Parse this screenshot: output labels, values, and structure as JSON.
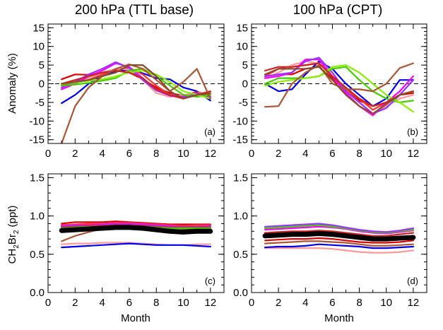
{
  "figure": {
    "col_titles": [
      "200 hPa (TTL base)",
      "100 hPa (CPT)"
    ],
    "ylabel_top": "Anomaly (%)",
    "ylabel_bottom": {
      "main": "CH",
      "sub1": "2",
      "mid": "Br",
      "sub2": "2",
      "tail": " (ppt)"
    },
    "xlabel": "Month"
  },
  "chart_data": [
    {
      "id": "a",
      "panel_label": "(a)",
      "type": "line",
      "xlim": [
        0,
        13
      ],
      "ylim": [
        -16,
        16
      ],
      "xticks": [
        0,
        2,
        4,
        6,
        8,
        10,
        12
      ],
      "yticks": [
        -15,
        -10,
        -5,
        0,
        5,
        10,
        15
      ],
      "zero_line": true,
      "grid": false,
      "x": [
        1,
        2,
        3,
        4,
        5,
        6,
        7,
        8,
        9,
        10,
        11,
        12
      ],
      "series": [
        {
          "color": "#0000ee",
          "width": 2.2,
          "values": [
            -5.2,
            -3,
            0,
            2,
            3.3,
            3.8,
            2.8,
            1.5,
            1.2,
            -1,
            -2,
            -4.5
          ]
        },
        {
          "color": "#dd0000",
          "width": 2.2,
          "values": [
            1.2,
            2.5,
            2.4,
            3,
            3.5,
            3,
            1.2,
            -1,
            -2.5,
            -3.2,
            -2.2,
            -3
          ]
        },
        {
          "color": "#ff3333",
          "width": 2.2,
          "values": [
            -0.5,
            0.2,
            1,
            2.5,
            3.8,
            4.3,
            2.5,
            -0.5,
            -3,
            -4,
            -3,
            -3
          ]
        },
        {
          "color": "#ff9999",
          "width": 2.2,
          "values": [
            -1.2,
            0,
            1.5,
            3,
            4,
            3.8,
            1,
            -2.5,
            -3.5,
            -3,
            -2.5,
            -2.5
          ]
        },
        {
          "color": "#ff00ff",
          "width": 2.2,
          "values": [
            -1.5,
            0,
            2,
            3.5,
            5.5,
            4.5,
            1.5,
            -1.5,
            -3,
            -3.5,
            -2.8,
            -3.5
          ]
        },
        {
          "color": "#9933ff",
          "width": 2.2,
          "values": [
            -1,
            0.5,
            2.5,
            4,
            5.8,
            4.2,
            1,
            -1.8,
            -3.2,
            -3.8,
            -2.5,
            -3.5
          ]
        },
        {
          "color": "#44cc00",
          "width": 2.2,
          "values": [
            -0.5,
            -0.2,
            0.2,
            0.8,
            1.5,
            3.5,
            4,
            2,
            -0.5,
            -3,
            -3.5,
            -3
          ]
        },
        {
          "color": "#88ee00",
          "width": 2.2,
          "values": [
            0,
            0.3,
            0.8,
            1.2,
            2,
            3,
            3.5,
            2.5,
            0.5,
            -2,
            -3,
            -4
          ]
        },
        {
          "color": "#cc2222",
          "width": 2.2,
          "values": [
            0,
            1,
            2,
            3,
            3.5,
            3,
            1.5,
            -1.5,
            -3,
            -4,
            -3,
            -2
          ]
        },
        {
          "color": "#aa5533",
          "width": 2.2,
          "values": [
            -16,
            -6,
            -1,
            2,
            4,
            5.2,
            4,
            1,
            -2,
            0.5,
            4,
            -4
          ]
        },
        {
          "color": "#8a4a2a",
          "width": 2.2,
          "values": [
            0,
            0.5,
            1,
            2,
            3,
            5,
            5,
            2,
            -2,
            -4,
            -3,
            -2.5
          ]
        }
      ]
    },
    {
      "id": "b",
      "panel_label": "(b)",
      "type": "line",
      "xlim": [
        0,
        13
      ],
      "ylim": [
        -16,
        16
      ],
      "xticks": [
        0,
        2,
        4,
        6,
        8,
        10,
        12
      ],
      "yticks": [
        -15,
        -10,
        -5,
        0,
        5,
        10,
        15
      ],
      "zero_line": true,
      "grid": false,
      "x": [
        1,
        2,
        3,
        4,
        5,
        6,
        7,
        8,
        9,
        10,
        11,
        12
      ],
      "series": [
        {
          "color": "#0000ee",
          "width": 2.2,
          "values": [
            0,
            -2,
            -1.5,
            2.5,
            6,
            4,
            0,
            -3,
            -6,
            -4,
            1,
            1
          ]
        },
        {
          "color": "#dd0000",
          "width": 2.2,
          "values": [
            2,
            2.5,
            2.5,
            4,
            4.5,
            1.5,
            -2,
            -4.5,
            -6,
            -5,
            -3,
            -2.5
          ]
        },
        {
          "color": "#ff3333",
          "width": 2.2,
          "values": [
            2,
            4,
            4.5,
            5,
            5.5,
            2,
            -1.5,
            -4,
            -7,
            -5,
            -3,
            -2
          ]
        },
        {
          "color": "#ff9999",
          "width": 2.2,
          "values": [
            1.5,
            3,
            5,
            6,
            5.5,
            3,
            -2,
            -5,
            -8,
            -6,
            -4,
            -3
          ]
        },
        {
          "color": "#ff00ff",
          "width": 2.2,
          "values": [
            1.5,
            2,
            3,
            6.5,
            6.5,
            2,
            -2.5,
            -6,
            -8.5,
            -5,
            -2,
            2
          ]
        },
        {
          "color": "#9933ff",
          "width": 2.2,
          "values": [
            2,
            2.5,
            3,
            6,
            7,
            3,
            -2,
            -5,
            -8,
            -6.5,
            -3,
            1
          ]
        },
        {
          "color": "#44cc00",
          "width": 2.2,
          "values": [
            0,
            1.5,
            1.5,
            1.5,
            2,
            4,
            4.5,
            1,
            -2,
            -4,
            -5,
            -4.5
          ]
        },
        {
          "color": "#88ee00",
          "width": 2.2,
          "values": [
            -0.5,
            0.5,
            1,
            1.5,
            2,
            4.5,
            5,
            3,
            0,
            -3,
            -5,
            -7.5
          ]
        },
        {
          "color": "#cc2222",
          "width": 2.2,
          "values": [
            3.5,
            4.5,
            4.5,
            5,
            5.5,
            2,
            -1,
            -4,
            -6,
            -5,
            -3,
            -2
          ]
        },
        {
          "color": "#aa5533",
          "width": 2.2,
          "values": [
            -6.2,
            -6,
            0,
            3,
            5,
            0,
            -1.5,
            -1.5,
            -2,
            0,
            4.2,
            5.5
          ]
        },
        {
          "color": "#8a4a2a",
          "width": 2.2,
          "values": [
            2.5,
            4,
            4,
            4,
            4.5,
            1,
            -3,
            -6,
            -8,
            -5.5,
            -3,
            -2
          ]
        }
      ]
    },
    {
      "id": "c",
      "panel_label": "(c)",
      "type": "line",
      "xlim": [
        0,
        13
      ],
      "ylim": [
        0,
        1.55
      ],
      "xticks": [
        0,
        2,
        4,
        6,
        8,
        10,
        12
      ],
      "yticks": [
        0.0,
        0.5,
        1.0,
        1.5
      ],
      "ytick_labels": [
        "0.0",
        "0.5",
        "1.0",
        "1.5"
      ],
      "grid": false,
      "x": [
        1,
        2,
        3,
        4,
        5,
        6,
        7,
        8,
        9,
        10,
        11,
        12
      ],
      "series": [
        {
          "color": "#ff9999",
          "width": 2.2,
          "values": [
            0.63,
            0.64,
            0.64,
            0.65,
            0.65,
            0.65,
            0.64,
            0.63,
            0.62,
            0.62,
            0.63,
            0.63
          ]
        },
        {
          "color": "#0000ee",
          "width": 2.2,
          "values": [
            0.59,
            0.6,
            0.61,
            0.62,
            0.63,
            0.64,
            0.63,
            0.62,
            0.62,
            0.62,
            0.61,
            0.6
          ]
        },
        {
          "color": "#aa5533",
          "width": 2.2,
          "values": [
            0.67,
            0.74,
            0.79,
            0.83,
            0.86,
            0.86,
            0.84,
            0.82,
            0.81,
            0.82,
            0.83,
            0.83
          ]
        },
        {
          "color": "#dd0000",
          "width": 2.2,
          "values": [
            0.9,
            0.92,
            0.92,
            0.92,
            0.93,
            0.92,
            0.91,
            0.9,
            0.89,
            0.89,
            0.89,
            0.89
          ]
        },
        {
          "color": "#ff3333",
          "width": 2.2,
          "values": [
            0.88,
            0.89,
            0.9,
            0.9,
            0.91,
            0.91,
            0.9,
            0.89,
            0.88,
            0.87,
            0.88,
            0.88
          ]
        },
        {
          "color": "#ff00ff",
          "width": 2.2,
          "values": [
            0.87,
            0.88,
            0.88,
            0.89,
            0.9,
            0.9,
            0.89,
            0.88,
            0.87,
            0.86,
            0.86,
            0.87
          ]
        },
        {
          "color": "#9933ff",
          "width": 2.2,
          "values": [
            0.86,
            0.87,
            0.87,
            0.88,
            0.89,
            0.89,
            0.88,
            0.87,
            0.86,
            0.86,
            0.86,
            0.86
          ]
        },
        {
          "color": "#cc2222",
          "width": 2.2,
          "values": [
            0.85,
            0.86,
            0.87,
            0.87,
            0.88,
            0.88,
            0.87,
            0.86,
            0.85,
            0.85,
            0.85,
            0.85
          ]
        },
        {
          "color": "#44cc00",
          "width": 2.2,
          "values": [
            0.84,
            0.85,
            0.86,
            0.86,
            0.87,
            0.87,
            0.86,
            0.85,
            0.84,
            0.84,
            0.84,
            0.84
          ]
        },
        {
          "color": "#000000",
          "width": 7,
          "values": [
            0.81,
            0.82,
            0.83,
            0.84,
            0.85,
            0.85,
            0.84,
            0.82,
            0.8,
            0.79,
            0.8,
            0.8
          ]
        }
      ]
    },
    {
      "id": "d",
      "panel_label": "(d)",
      "type": "line",
      "xlim": [
        0,
        13
      ],
      "ylim": [
        0,
        1.55
      ],
      "xticks": [
        0,
        2,
        4,
        6,
        8,
        10,
        12
      ],
      "yticks": [
        0.0,
        0.5,
        1.0,
        1.5
      ],
      "ytick_labels": [
        "0.0",
        "0.5",
        "1.0",
        "1.5"
      ],
      "grid": false,
      "x": [
        1,
        2,
        3,
        4,
        5,
        6,
        7,
        8,
        9,
        10,
        11,
        12
      ],
      "series": [
        {
          "color": "#ff9999",
          "width": 2.2,
          "values": [
            0.58,
            0.58,
            0.58,
            0.58,
            0.58,
            0.57,
            0.55,
            0.53,
            0.52,
            0.52,
            0.53,
            0.55
          ]
        },
        {
          "color": "#0000ee",
          "width": 2.2,
          "values": [
            0.59,
            0.6,
            0.6,
            0.61,
            0.63,
            0.62,
            0.61,
            0.6,
            0.58,
            0.58,
            0.59,
            0.6
          ]
        },
        {
          "color": "#aa5533",
          "width": 2.2,
          "values": [
            0.64,
            0.65,
            0.66,
            0.67,
            0.67,
            0.66,
            0.65,
            0.63,
            0.61,
            0.61,
            0.62,
            0.63
          ]
        },
        {
          "color": "#dd0000",
          "width": 2.2,
          "values": [
            0.68,
            0.69,
            0.7,
            0.7,
            0.71,
            0.7,
            0.68,
            0.66,
            0.65,
            0.65,
            0.66,
            0.68
          ]
        },
        {
          "color": "#ff3333",
          "width": 2.2,
          "values": [
            0.72,
            0.73,
            0.74,
            0.75,
            0.76,
            0.75,
            0.73,
            0.71,
            0.7,
            0.7,
            0.71,
            0.73
          ]
        },
        {
          "color": "#cc2222",
          "width": 2.2,
          "values": [
            0.78,
            0.79,
            0.8,
            0.8,
            0.81,
            0.8,
            0.78,
            0.76,
            0.74,
            0.74,
            0.76,
            0.78
          ]
        },
        {
          "color": "#ff00ff",
          "width": 2.2,
          "values": [
            0.82,
            0.83,
            0.84,
            0.85,
            0.86,
            0.85,
            0.83,
            0.8,
            0.78,
            0.77,
            0.79,
            0.81
          ]
        },
        {
          "color": "#44cc00",
          "width": 2.2,
          "values": [
            0.84,
            0.85,
            0.86,
            0.87,
            0.88,
            0.86,
            0.84,
            0.81,
            0.79,
            0.78,
            0.8,
            0.82
          ]
        },
        {
          "color": "#9933ff",
          "width": 2.2,
          "values": [
            0.86,
            0.87,
            0.88,
            0.89,
            0.9,
            0.88,
            0.85,
            0.82,
            0.8,
            0.79,
            0.81,
            0.84
          ]
        },
        {
          "color": "#000000",
          "width": 7,
          "values": [
            0.74,
            0.75,
            0.76,
            0.76,
            0.77,
            0.76,
            0.74,
            0.72,
            0.7,
            0.7,
            0.71,
            0.72
          ]
        }
      ]
    }
  ]
}
